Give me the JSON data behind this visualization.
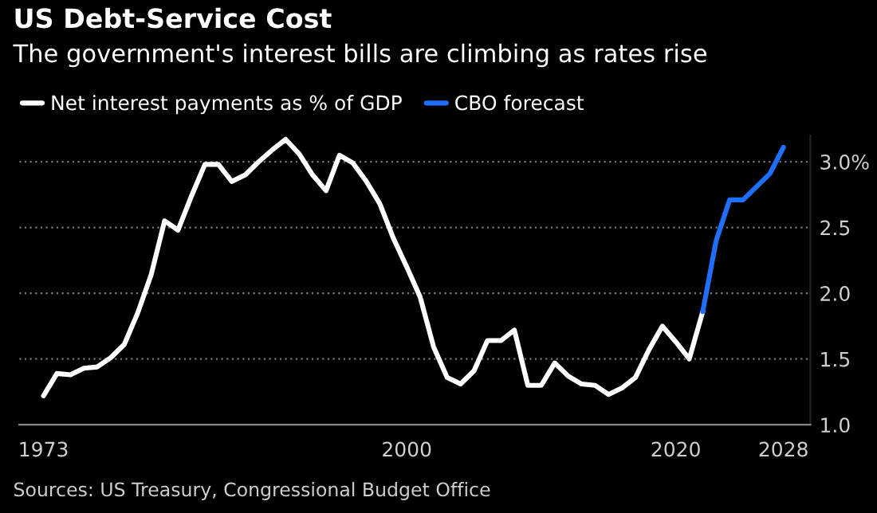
{
  "chart_data": {
    "type": "line",
    "title": "US Debt-Service Cost",
    "subtitle": "The government's interest bills are climbing as rates rise",
    "series": [
      {
        "name": "Net interest payments as % of GDP",
        "color": "#ffffff",
        "x": [
          1973,
          1974,
          1975,
          1976,
          1977,
          1978,
          1979,
          1980,
          1981,
          1982,
          1983,
          1984,
          1985,
          1986,
          1987,
          1988,
          1989,
          1990,
          1991,
          1992,
          1993,
          1994,
          1995,
          1996,
          1997,
          1998,
          1999,
          2000,
          2001,
          2002,
          2003,
          2004,
          2005,
          2006,
          2007,
          2008,
          2009,
          2010,
          2011,
          2012,
          2013,
          2014,
          2015,
          2016,
          2017,
          2018,
          2019,
          2020,
          2021,
          2022
        ],
        "values": [
          1.22,
          1.39,
          1.38,
          1.43,
          1.44,
          1.51,
          1.61,
          1.85,
          2.14,
          2.55,
          2.48,
          2.74,
          2.98,
          2.98,
          2.85,
          2.9,
          3.0,
          3.09,
          3.17,
          3.06,
          2.9,
          2.78,
          3.05,
          2.99,
          2.85,
          2.68,
          2.42,
          2.2,
          1.97,
          1.59,
          1.36,
          1.31,
          1.41,
          1.64,
          1.64,
          1.72,
          1.3,
          1.3,
          1.47,
          1.37,
          1.31,
          1.3,
          1.23,
          1.28,
          1.36,
          1.57,
          1.75,
          1.63,
          1.5,
          1.86
        ]
      },
      {
        "name": "CBO forecast",
        "color": "#1f6fff",
        "x": [
          2022,
          2023,
          2024,
          2025,
          2026,
          2027,
          2028
        ],
        "values": [
          1.86,
          2.4,
          2.71,
          2.71,
          2.81,
          2.91,
          3.11
        ]
      }
    ],
    "xlim": [
      1971.2,
      2030
    ],
    "xticks": [
      1973,
      2000,
      2020,
      2028
    ],
    "ylim": [
      1.0,
      3.2
    ],
    "yticks": [
      {
        "value": 1.0,
        "label": "1.0"
      },
      {
        "value": 1.5,
        "label": "1.5"
      },
      {
        "value": 2.0,
        "label": "2.0"
      },
      {
        "value": 2.5,
        "label": "2.5"
      },
      {
        "value": 3.0,
        "label": "3.0%"
      }
    ],
    "grid": "y",
    "legend": "top left",
    "line_style": "solid",
    "marker": "none",
    "annotations": [
      "Sources: US Treasury, Congressional Budget Office"
    ]
  }
}
